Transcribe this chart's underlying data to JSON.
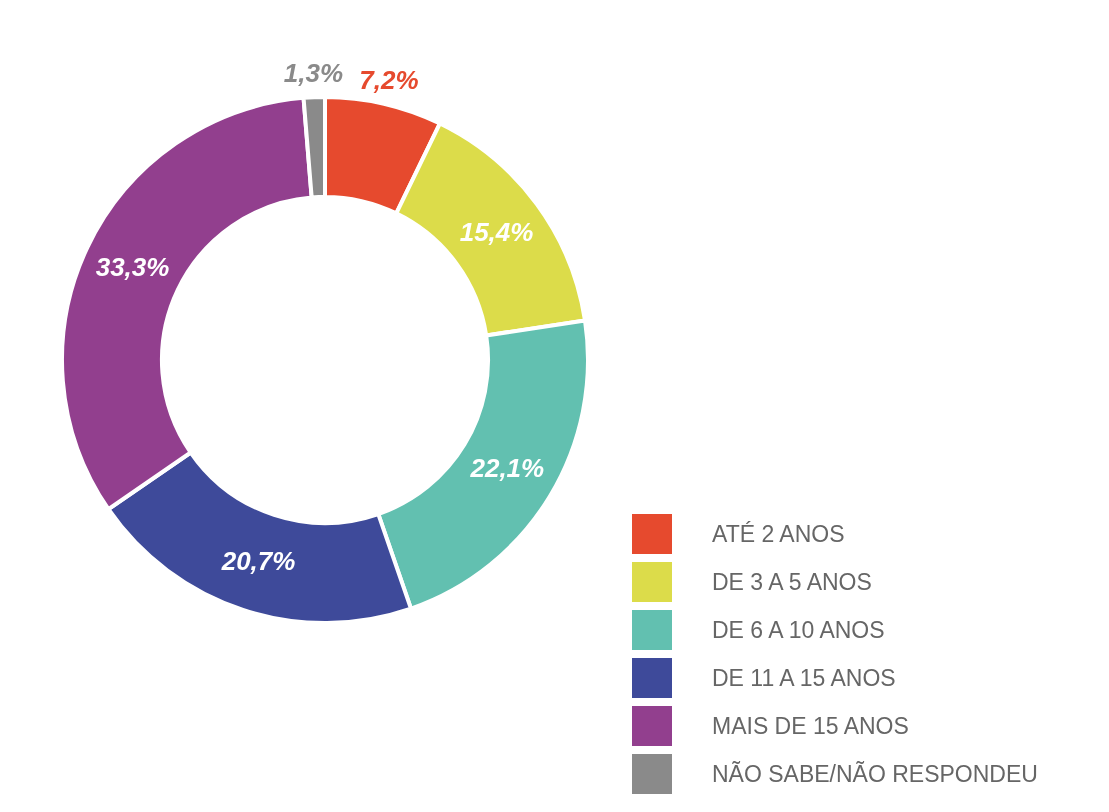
{
  "chart_data": {
    "type": "donut",
    "categories": [
      "ATÉ 2 ANOS",
      "DE 3 A 5 ANOS",
      "DE 6 A 10 ANOS",
      "DE 11 A 15 ANOS",
      "MAIS DE 15 ANOS",
      "NÃO SABE/NÃO RESPONDEU"
    ],
    "values": [
      7.2,
      15.4,
      22.1,
      20.7,
      33.3,
      1.3
    ],
    "colors": [
      "#e64a2e",
      "#dcdc4a",
      "#62c0b0",
      "#3e4a9a",
      "#923f8e",
      "#8a8a8a"
    ],
    "value_labels": [
      "7,2%",
      "15,4%",
      "22,1%",
      "20,7%",
      "33,3%",
      "1,3%"
    ],
    "legend": "bottom right"
  }
}
